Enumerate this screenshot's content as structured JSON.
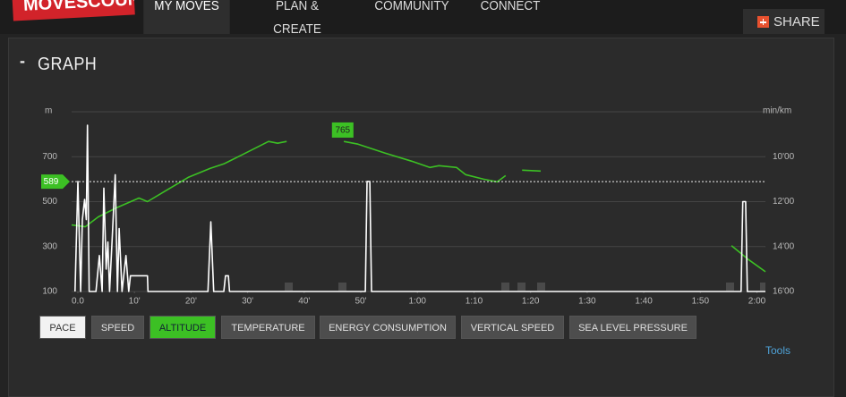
{
  "nav": {
    "logo": "MOVESCOUNT",
    "items": [
      "MY MOVES",
      "PLAN & CREATE",
      "COMMUNITY",
      "CONNECT"
    ],
    "share": "SHARE"
  },
  "section": {
    "toggle": "-",
    "title": "GRAPH"
  },
  "chart_data": {
    "type": "line",
    "y_label": "m",
    "y2_label": "min/km",
    "xlim": [
      -1.1,
      121.5
    ],
    "xticks": [
      {
        "value": 0,
        "label": "0.0"
      },
      {
        "value": 10,
        "label": "10'"
      },
      {
        "value": 20,
        "label": "20'"
      },
      {
        "value": 30,
        "label": "30'"
      },
      {
        "value": 40,
        "label": "40'"
      },
      {
        "value": 50,
        "label": "50'"
      },
      {
        "value": 60,
        "label": "1:00"
      },
      {
        "value": 70,
        "label": "1:10"
      },
      {
        "value": 80,
        "label": "1:20"
      },
      {
        "value": 90,
        "label": "1:30"
      },
      {
        "value": 100,
        "label": "1:40"
      },
      {
        "value": 110,
        "label": "1:50"
      },
      {
        "value": 120,
        "label": "2:00"
      }
    ],
    "ylim": [
      100,
      900
    ],
    "yticks": [
      100,
      300,
      500,
      700
    ],
    "y2lim": [
      16,
      8
    ],
    "y2ticks": [
      {
        "value": 10,
        "label": "10'00"
      },
      {
        "value": 12,
        "label": "12'00"
      },
      {
        "value": 14,
        "label": "14'00"
      },
      {
        "value": 16,
        "label": "16'00"
      }
    ],
    "grid": true,
    "reference_line": {
      "value": 589,
      "color": "#3cc024"
    },
    "peak_label": {
      "x": 46.8,
      "value": 765,
      "color": "#3cc024"
    },
    "series": [
      {
        "color": "#3cc024",
        "axis": "y",
        "x": [
          -1.1,
          1.3,
          3.6,
          6.8,
          10.8,
          12.3,
          15.5,
          19.5,
          23.4,
          25.8,
          29,
          33.7,
          35.3,
          36.9,
          42,
          47,
          49.5,
          54.3,
          59,
          62.2,
          63.8,
          66.9,
          68.5,
          71.7,
          74.1,
          75.6,
          77,
          78.5,
          81.8,
          100,
          115.5,
          118.4,
          121.5
        ],
        "values": [
          396,
          388,
          432,
          472,
          516,
          500,
          548,
          608,
          648,
          668,
          708,
          768,
          760,
          768,
          null,
          768,
          756,
          716,
          680,
          652,
          660,
          652,
          620,
          600,
          588,
          616,
          null,
          640,
          636,
          null,
          304,
          244,
          188
        ]
      },
      {
        "color": "#ffffff",
        "axis": "y2",
        "x": [
          -0.5,
          0,
          0.5,
          0.8,
          1.2,
          1.5,
          1.7,
          2.0,
          3.2,
          3.8,
          4.3,
          4.6,
          5.0,
          5.3,
          5.6,
          6.1,
          6.6,
          7.0,
          7.3,
          7.8,
          8.5,
          9.0,
          9.3,
          12.3,
          12.4,
          23.0,
          23.5,
          24.0,
          25.8,
          26.1,
          26.6,
          26.8,
          50.8,
          51.1,
          51.6,
          51.9,
          117.2,
          117.5,
          118.0,
          118.3,
          121.5
        ],
        "values": [
          16,
          11.1,
          16,
          12.8,
          11.9,
          12.8,
          8.6,
          16,
          16,
          14.4,
          16,
          11.4,
          15,
          13.8,
          16,
          13.5,
          10.8,
          16,
          13.2,
          16,
          14.4,
          16,
          15.3,
          15.3,
          16,
          16,
          12.9,
          16,
          16,
          15.3,
          15.3,
          16,
          16,
          11.1,
          11.1,
          16,
          16,
          12,
          12,
          16,
          16
        ]
      }
    ]
  },
  "buttons": [
    {
      "label": "PACE",
      "color": "#f2f2f2"
    },
    {
      "label": "SPEED",
      "color": "#4d4d4d"
    },
    {
      "label": "ALTITUDE",
      "color": "#3cc024"
    },
    {
      "label": "TEMPERATURE",
      "color": "#4d4d4d"
    },
    {
      "label": "ENERGY CONSUMPTION",
      "color": "#4d4d4d"
    },
    {
      "label": "VERTICAL SPEED",
      "color": "#4d4d4d"
    },
    {
      "label": "SEA LEVEL PRESSURE",
      "color": "#4d4d4d"
    }
  ],
  "tools": "Tools"
}
